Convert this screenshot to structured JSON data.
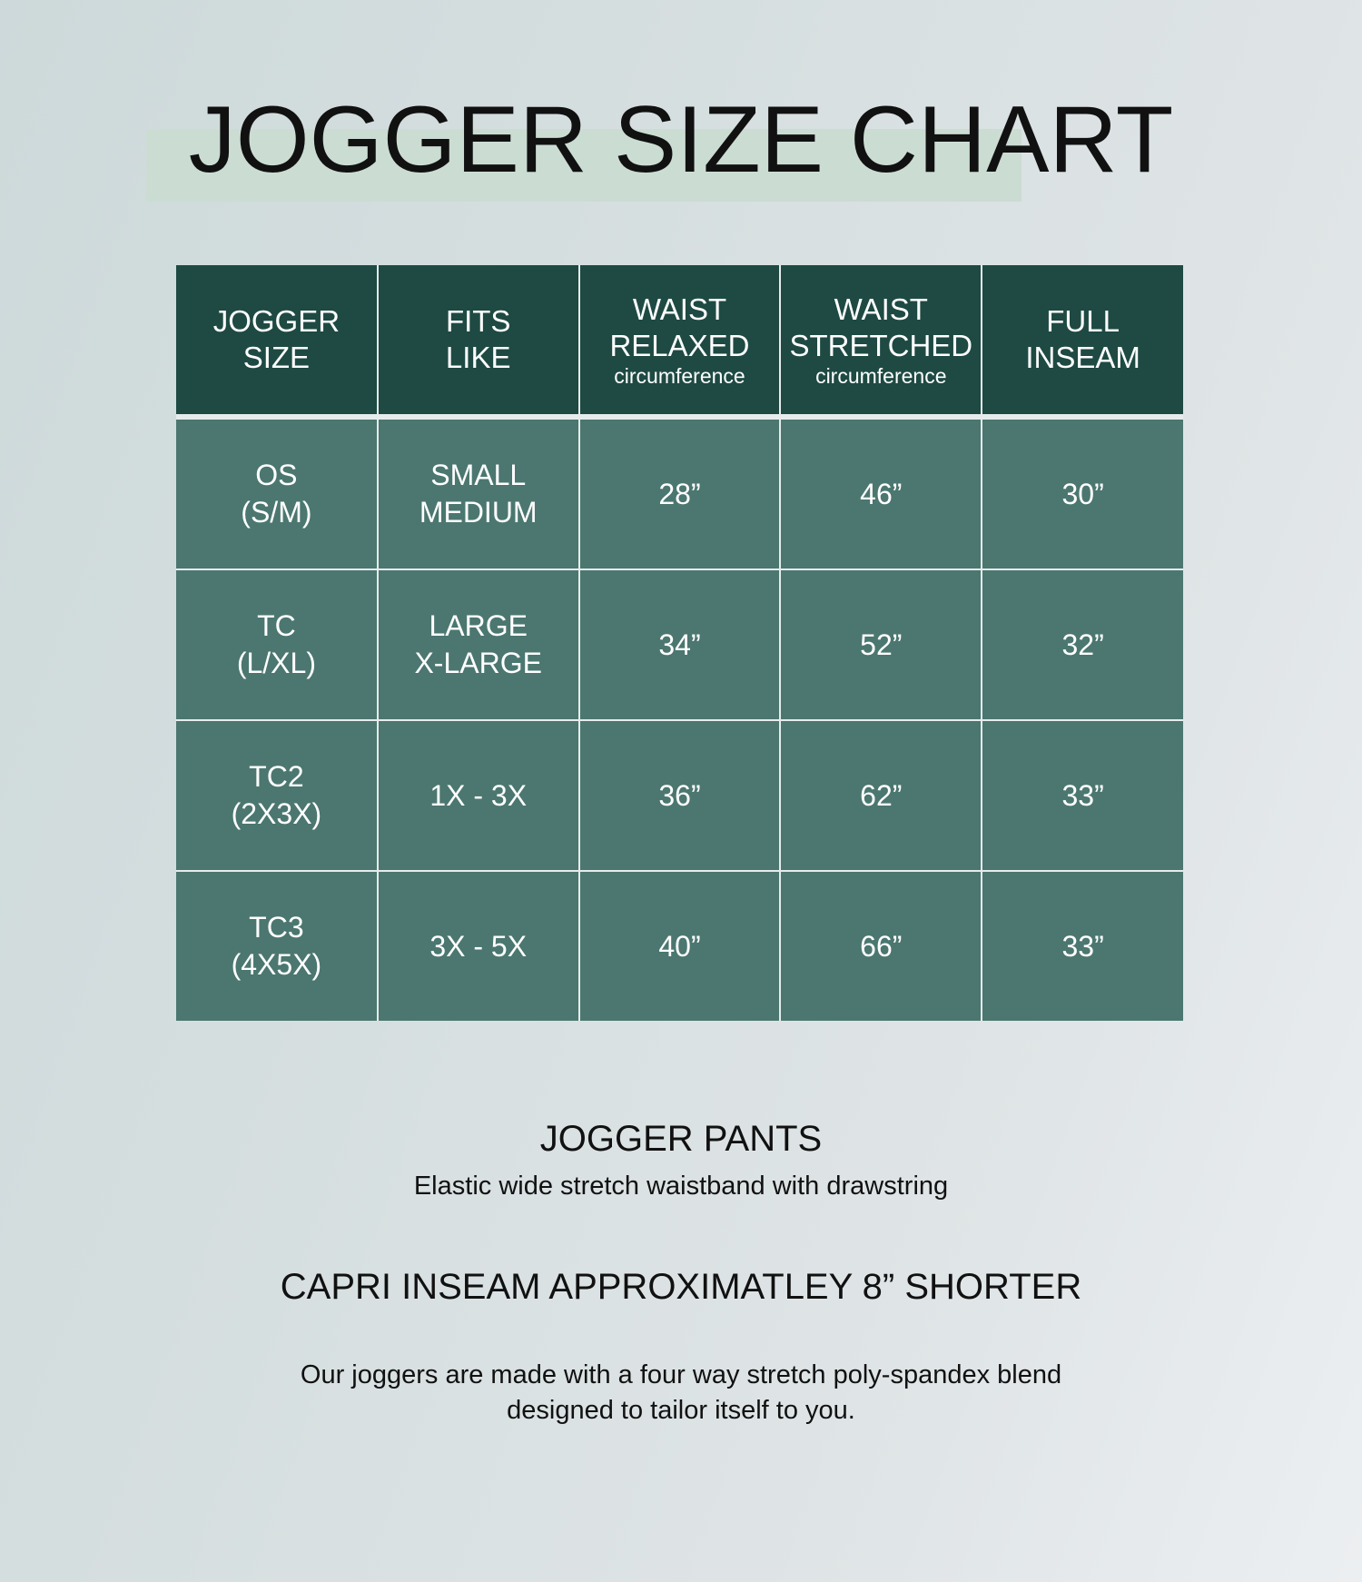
{
  "title": "JOGGER SIZE CHART",
  "colors": {
    "header_bg": "#1e4a43",
    "cell_bg": "#4b7770",
    "title_band": "#cbdcd3"
  },
  "table": {
    "headers": [
      {
        "line1": "JOGGER",
        "line2": "SIZE",
        "sub": ""
      },
      {
        "line1": "FITS",
        "line2": "LIKE",
        "sub": ""
      },
      {
        "line1": "WAIST",
        "line2": "RELAXED",
        "sub": "circumference"
      },
      {
        "line1": "WAIST",
        "line2": "STRETCHED",
        "sub": "circumference"
      },
      {
        "line1": "FULL",
        "line2": "INSEAM",
        "sub": ""
      }
    ],
    "rows": [
      {
        "size": [
          "OS",
          "(S/M)"
        ],
        "fits": [
          "SMALL",
          "MEDIUM"
        ],
        "relaxed": "28”",
        "stretched": "46”",
        "inseam": "30”"
      },
      {
        "size": [
          "TC",
          "(L/XL)"
        ],
        "fits": [
          "LARGE",
          "X-LARGE"
        ],
        "relaxed": "34”",
        "stretched": "52”",
        "inseam": "32”"
      },
      {
        "size": [
          "TC2",
          "(2X3X)"
        ],
        "fits": [
          "1X - 3X",
          ""
        ],
        "relaxed": "36”",
        "stretched": "62”",
        "inseam": "33”"
      },
      {
        "size": [
          "TC3",
          "(4X5X)"
        ],
        "fits": [
          "3X - 5X",
          ""
        ],
        "relaxed": "40”",
        "stretched": "66”",
        "inseam": "33”"
      }
    ]
  },
  "jogger_pants": {
    "heading": "JOGGER PANTS",
    "desc": "Elastic wide stretch waistband with drawstring"
  },
  "capri_note": "CAPRI INSEAM APPROXIMATLEY 8” SHORTER",
  "fabric": {
    "line1": "Our joggers are made with a four way stretch poly-spandex blend",
    "line2": "designed to tailor itself to you."
  }
}
